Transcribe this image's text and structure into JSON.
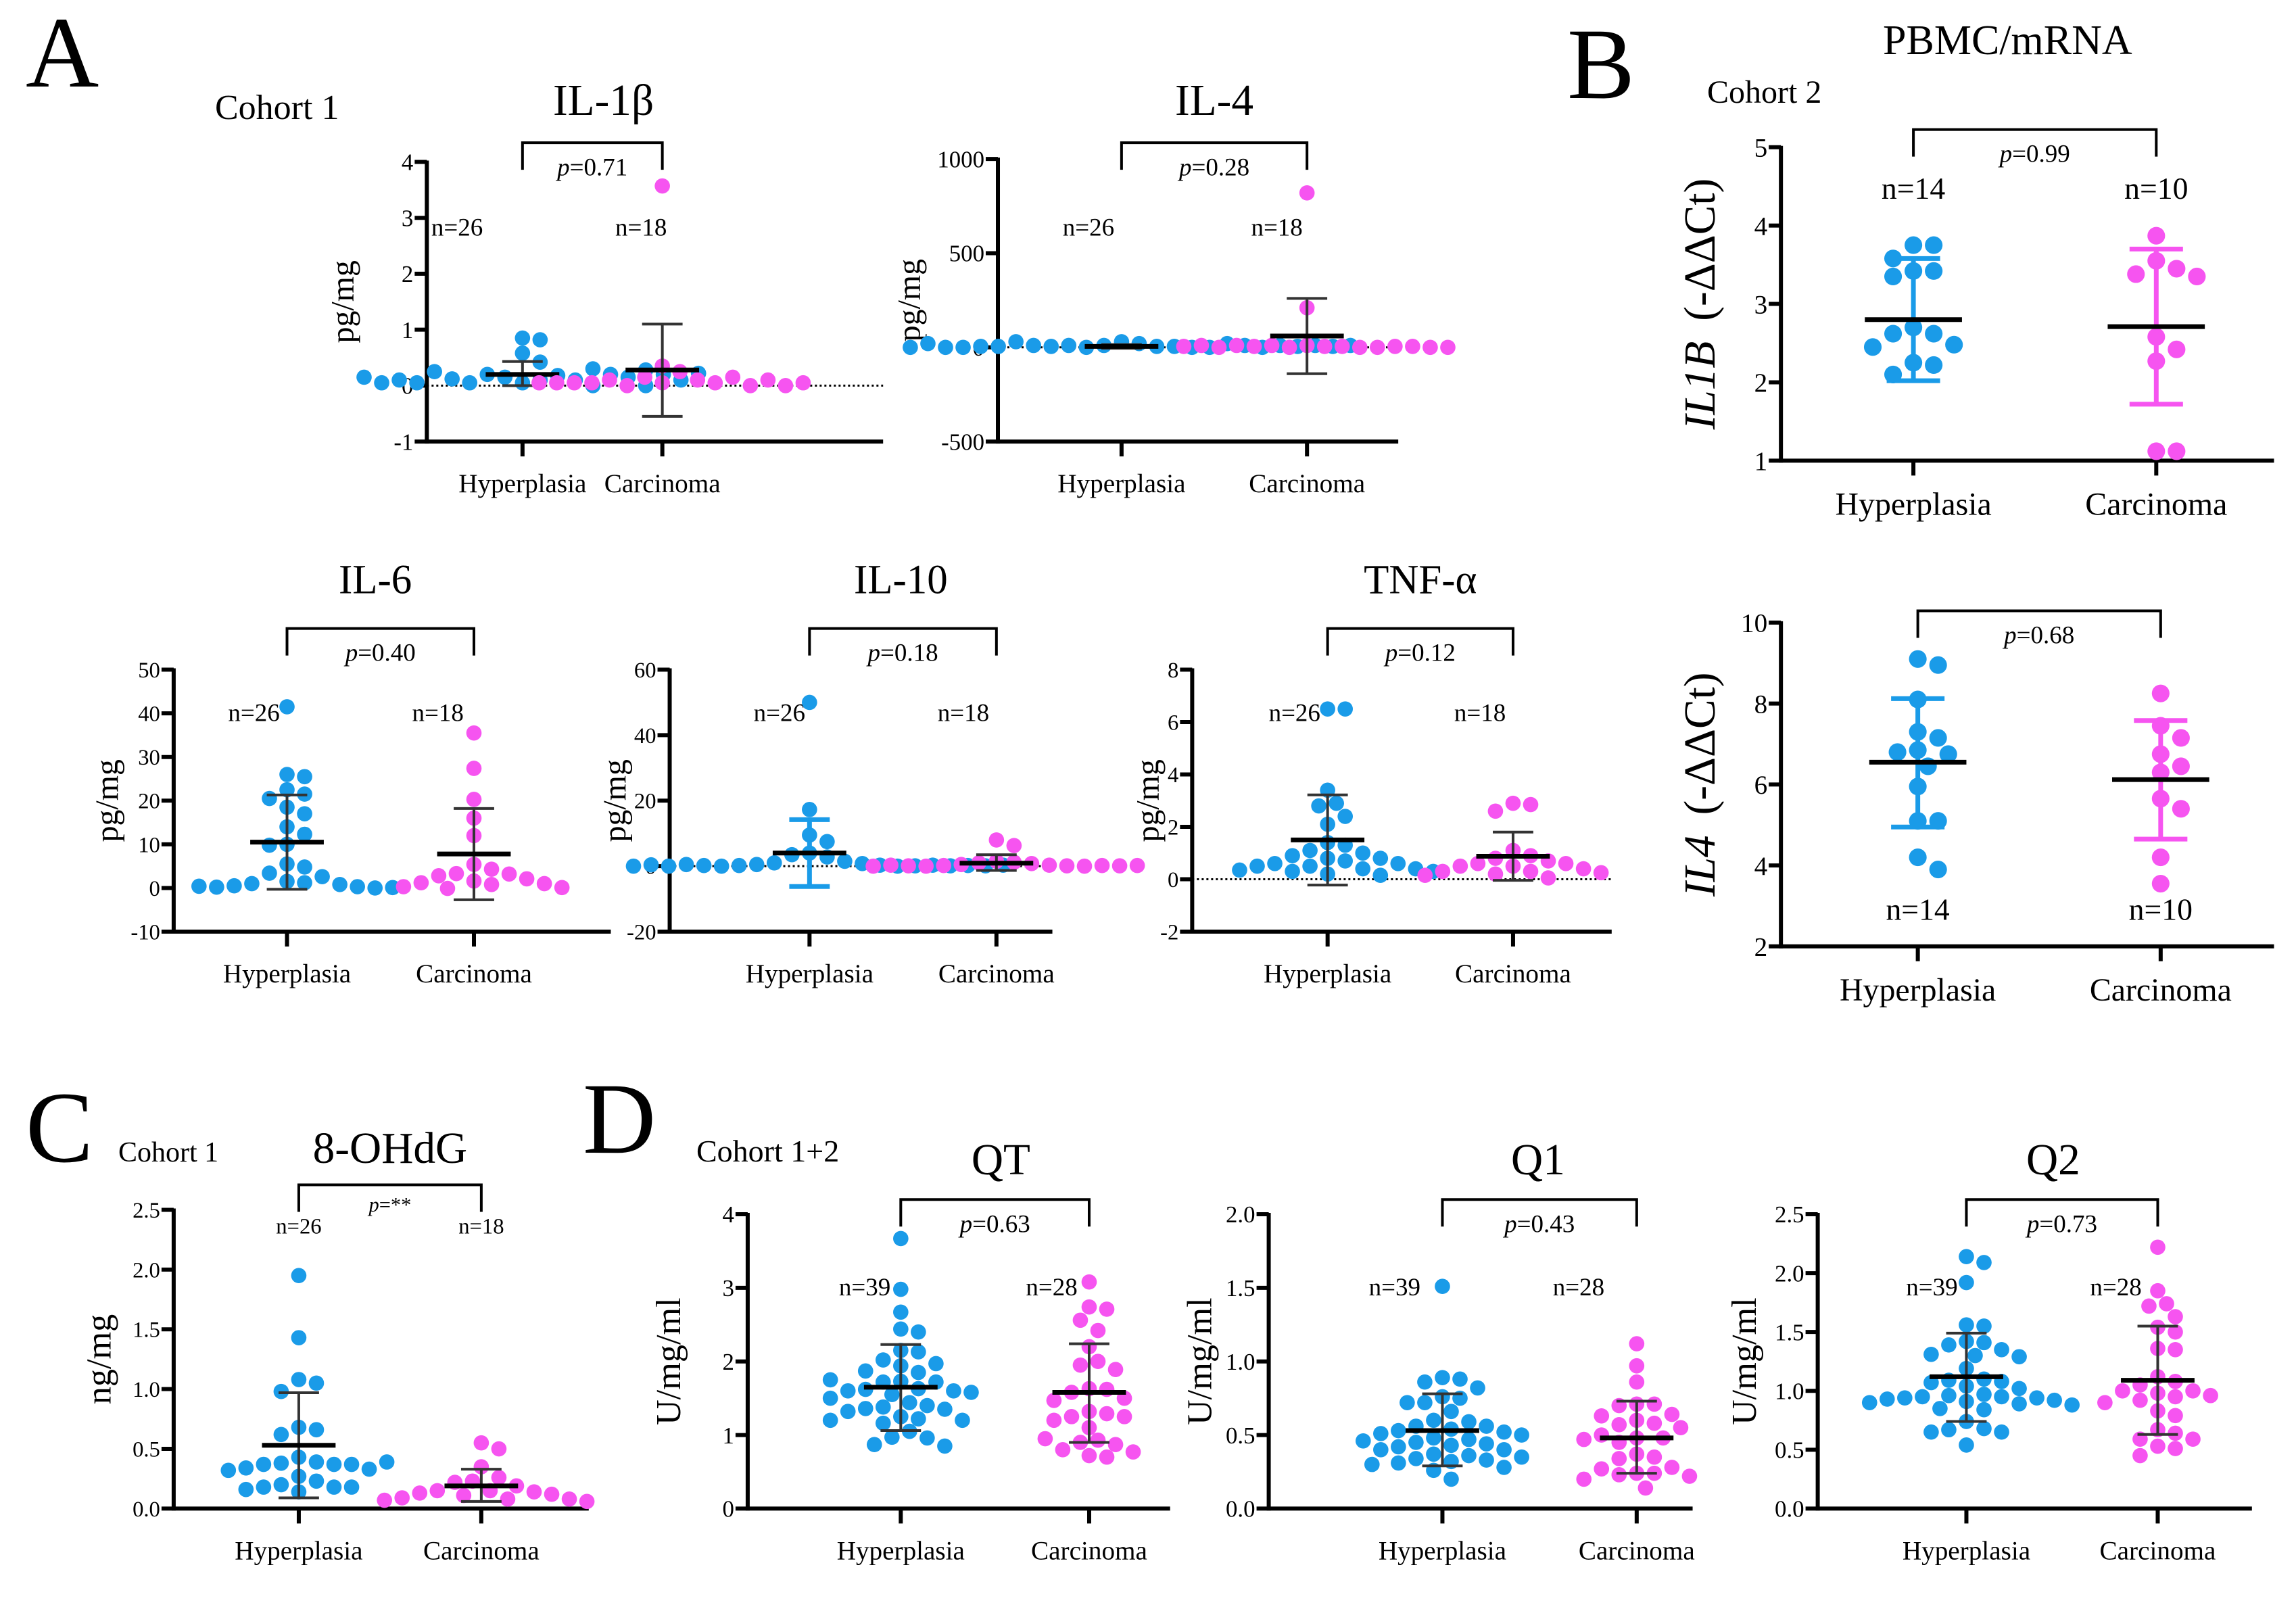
{
  "figure": {
    "panel_labels": [
      "A",
      "B",
      "C",
      "D"
    ],
    "headers": {
      "A_cohort": "Cohort 1",
      "B_title": "PBMC/mRNA",
      "B_cohort": "Cohort 2",
      "C_cohort": "Cohort 1",
      "D_cohort": "Cohort 1+2"
    },
    "colors": {
      "hyperplasia": "#1a9be8",
      "carcinoma": "#f654f0",
      "mean_line": "#000000",
      "axis": "#000000"
    }
  },
  "chart_data": [
    {
      "id": "il1b",
      "type": "scatter",
      "title": "IL-1β",
      "ylabel": "pg/mg",
      "ylim": [
        -1,
        4
      ],
      "yticks": [
        -1,
        0,
        1,
        2,
        3,
        4
      ],
      "tick_labels": [
        "-1",
        "0",
        "1",
        "2",
        "3",
        "4"
      ],
      "zero_line": true,
      "categories": [
        "Hyperplasia",
        "Carcinoma"
      ],
      "p_text": "p=0.71",
      "n_labels": [
        "n=26",
        "n=18"
      ],
      "series": [
        {
          "name": "Hyperplasia",
          "mean": 0.2,
          "sd_upper": 0.43,
          "sd_lower": 0.0,
          "values": [
            0.05,
            0.1,
            0.15,
            0.18,
            0.2,
            0.1,
            0.05,
            0.0,
            0.12,
            0.2,
            0.25,
            0.3,
            0.15,
            0.05,
            0.0,
            0.1,
            0.2,
            0.85,
            0.82,
            0.58,
            0.42,
            0.28,
            0.05,
            0.1,
            0.15,
            0.22
          ]
        },
        {
          "name": "Carcinoma",
          "mean": 0.28,
          "sd_upper": 1.1,
          "sd_lower": -0.55,
          "values": [
            3.57,
            0.35,
            0.25,
            0.15,
            0.1,
            0.05,
            0.0,
            0.05,
            0.1,
            0.15,
            0.05,
            0.0,
            0.05,
            0.1,
            0.05,
            0.0,
            0.05,
            0.05
          ]
        }
      ]
    },
    {
      "id": "il4",
      "type": "scatter",
      "title": "IL-4",
      "ylabel": "pg/mg",
      "ylim": [
        -500,
        1000
      ],
      "yticks": [
        -500,
        0,
        500,
        1000
      ],
      "tick_labels": [
        "-500",
        "0",
        "500",
        "1000"
      ],
      "zero_line": true,
      "categories": [
        "Hyperplasia",
        "Carcinoma"
      ],
      "p_text": "p=0.28",
      "n_labels": [
        "n=26",
        "n=18"
      ],
      "series": [
        {
          "name": "Hyperplasia",
          "mean": 5,
          "sd_upper": 15,
          "sd_lower": -5,
          "values": [
            30,
            20,
            10,
            5,
            0,
            5,
            10,
            0,
            5,
            0,
            10,
            20,
            30,
            10,
            5,
            0,
            5,
            10,
            0,
            5,
            0,
            10,
            20,
            5,
            0,
            10
          ]
        },
        {
          "name": "Carcinoma",
          "mean": 60,
          "sd_upper": 260,
          "sd_lower": -140,
          "values": [
            820,
            210,
            10,
            5,
            0,
            5,
            10,
            0,
            5,
            0,
            10,
            5,
            0,
            5,
            10,
            0,
            5,
            0
          ]
        }
      ]
    },
    {
      "id": "il1b_mrna",
      "type": "scatter",
      "title": "",
      "ylabel_italic": "IL1B",
      "ylabel": "(-ΔΔCt)",
      "ylim": [
        1,
        5
      ],
      "yticks": [
        1,
        2,
        3,
        4,
        5
      ],
      "tick_labels": [
        "1",
        "2",
        "3",
        "4",
        "5"
      ],
      "zero_line": false,
      "colored_errorbars": true,
      "categories": [
        "Hyperplasia",
        "Carcinoma"
      ],
      "p_text": "p=0.99",
      "n_labels": [
        "n=14",
        "n=10"
      ],
      "n_position": "top",
      "series": [
        {
          "name": "Hyperplasia",
          "mean": 2.8,
          "sd_upper": 3.58,
          "sd_lower": 2.02,
          "values": [
            3.75,
            3.75,
            3.58,
            3.42,
            3.42,
            3.35,
            2.7,
            2.62,
            2.62,
            2.48,
            2.25,
            2.22,
            2.1,
            2.45
          ]
        },
        {
          "name": "Carcinoma",
          "mean": 2.71,
          "sd_upper": 3.7,
          "sd_lower": 1.72,
          "values": [
            3.87,
            3.55,
            3.45,
            3.38,
            3.35,
            2.58,
            2.42,
            2.27,
            1.12,
            1.12
          ]
        }
      ]
    },
    {
      "id": "il6",
      "type": "scatter",
      "title": "IL-6",
      "ylabel": "pg/mg",
      "ylim": [
        -10,
        50
      ],
      "yticks": [
        -10,
        0,
        10,
        20,
        30,
        40,
        50
      ],
      "tick_labels": [
        "-10",
        "0",
        "10",
        "20",
        "30",
        "40",
        "50"
      ],
      "zero_line": false,
      "categories": [
        "Hyperplasia",
        "Carcinoma"
      ],
      "p_text": "p=0.40",
      "n_labels": [
        "n=26",
        "n=18"
      ],
      "series": [
        {
          "name": "Hyperplasia",
          "mean": 10.5,
          "sd_upper": 21.3,
          "sd_lower": -0.3,
          "values": [
            41.5,
            26,
            25.5,
            22.5,
            21.5,
            20.5,
            18.5,
            17,
            14,
            12.3,
            10,
            9.8,
            5.5,
            4.8,
            3.4,
            2.6,
            1.5,
            1.2,
            1.0,
            0.8,
            0.5,
            0.3,
            0.2,
            0.0,
            0.4,
            0.1
          ]
        },
        {
          "name": "Carcinoma",
          "mean": 7.8,
          "sd_upper": 18.2,
          "sd_lower": -2.7,
          "values": [
            35.5,
            27.4,
            20.3,
            16,
            12,
            5.4,
            4.3,
            3.3,
            3.2,
            2.8,
            2.1,
            1.6,
            1.2,
            1.0,
            0.8,
            0.3,
            0.1,
            -0.1
          ]
        }
      ]
    },
    {
      "id": "il10",
      "type": "scatter",
      "title": "IL-10",
      "ylabel": "pg/mg",
      "ylim": [
        -20,
        60
      ],
      "yticks": [
        -20,
        0,
        20,
        40,
        60
      ],
      "tick_labels": [
        "-20",
        "0",
        "20",
        "40",
        "60"
      ],
      "zero_line": true,
      "colored_errorbars_hyper": true,
      "categories": [
        "Hyperplasia",
        "Carcinoma"
      ],
      "p_text": "p=0.18",
      "n_labels": [
        "n=26",
        "n=18"
      ],
      "series": [
        {
          "name": "Hyperplasia",
          "mean": 4.0,
          "sd_upper": 14.2,
          "sd_lower": -6.2,
          "values": [
            50,
            17.3,
            9.5,
            7.5,
            4,
            3.5,
            2.8,
            1.5,
            1,
            0.8,
            0.5,
            0.3,
            0.2,
            0,
            0,
            0.1,
            0.2,
            0.3,
            0.5,
            0.1,
            0,
            0.2,
            0.4,
            0.1,
            0,
            0.3
          ]
        },
        {
          "name": "Carcinoma",
          "mean": 0.9,
          "sd_upper": 3.5,
          "sd_lower": -1.3,
          "values": [
            8,
            6.3,
            1.5,
            1.2,
            1,
            0.8,
            0.5,
            0.3,
            0.2,
            0.1,
            0,
            0,
            0.1,
            0.2,
            0.3,
            0.1,
            0,
            0.2
          ]
        }
      ]
    },
    {
      "id": "tnfa",
      "type": "scatter",
      "title": "TNF-α",
      "ylabel": "pg/mg",
      "ylim": [
        -2,
        8
      ],
      "yticks": [
        -2,
        0,
        2,
        4,
        6,
        8
      ],
      "tick_labels": [
        "-2",
        "0",
        "2",
        "4",
        "6",
        "8"
      ],
      "zero_line": true,
      "categories": [
        "Hyperplasia",
        "Carcinoma"
      ],
      "p_text": "p=0.12",
      "n_labels": [
        "n=26",
        "n=18"
      ],
      "series": [
        {
          "name": "Hyperplasia",
          "mean": 1.5,
          "sd_upper": 3.22,
          "sd_lower": -0.22,
          "values": [
            6.5,
            6.5,
            3.4,
            2.9,
            2.8,
            2.4,
            2.1,
            1.4,
            1.3,
            1.1,
            1.0,
            0.9,
            0.8,
            0.8,
            0.7,
            0.6,
            0.6,
            0.5,
            0.5,
            0.4,
            0.4,
            0.35,
            0.3,
            0.3,
            0.2,
            0.15
          ]
        },
        {
          "name": "Carcinoma",
          "mean": 0.88,
          "sd_upper": 1.8,
          "sd_lower": -0.04,
          "values": [
            2.9,
            2.85,
            2.6,
            1.1,
            0.9,
            0.8,
            0.7,
            0.6,
            0.6,
            0.5,
            0.5,
            0.4,
            0.3,
            0.3,
            0.25,
            0.2,
            0.15,
            0.05
          ]
        }
      ]
    },
    {
      "id": "il4_mrna",
      "type": "scatter",
      "title": "",
      "ylabel_italic": "IL4",
      "ylabel": "(-ΔΔCt)",
      "ylim": [
        2,
        10
      ],
      "yticks": [
        2,
        4,
        6,
        8,
        10
      ],
      "tick_labels": [
        "2",
        "4",
        "6",
        "8",
        "10"
      ],
      "zero_line": false,
      "colored_errorbars": true,
      "categories": [
        "Hyperplasia",
        "Carcinoma"
      ],
      "p_text": "p=0.68",
      "n_labels": [
        "n=14",
        "n=10"
      ],
      "n_position": "bottom",
      "series": [
        {
          "name": "Hyperplasia",
          "mean": 6.55,
          "sd_upper": 8.12,
          "sd_lower": 4.95,
          "values": [
            9.1,
            8.95,
            8.1,
            7.3,
            7.15,
            6.85,
            6.8,
            6.75,
            6.45,
            5.95,
            5.1,
            5.1,
            4.2,
            3.9
          ]
        },
        {
          "name": "Carcinoma",
          "mean": 6.12,
          "sd_upper": 7.58,
          "sd_lower": 4.65,
          "values": [
            8.25,
            7.45,
            7.15,
            6.75,
            6.45,
            6.3,
            5.65,
            5.4,
            4.2,
            3.55
          ]
        }
      ]
    },
    {
      "id": "ohdg",
      "type": "scatter",
      "title": "8-OHdG",
      "ylabel": "ng/mg",
      "ylim": [
        0,
        2.5
      ],
      "yticks": [
        0,
        0.5,
        1.0,
        1.5,
        2.0,
        2.5
      ],
      "tick_labels": [
        "0.0",
        "0.5",
        "1.0",
        "1.5",
        "2.0",
        "2.5"
      ],
      "zero_line": false,
      "categories": [
        "Hyperplasia",
        "Carcinoma"
      ],
      "p_text": "p=**",
      "n_labels": [
        "n=26",
        "n=18"
      ],
      "n_position": "top",
      "series": [
        {
          "name": "Hyperplasia",
          "mean": 0.53,
          "sd_upper": 0.97,
          "sd_lower": 0.09,
          "values": [
            1.95,
            1.43,
            1.08,
            1.05,
            0.98,
            0.68,
            0.66,
            0.62,
            0.43,
            0.39,
            0.38,
            0.37,
            0.37,
            0.37,
            0.34,
            0.33,
            0.32,
            0.27,
            0.23,
            0.2,
            0.18,
            0.18,
            0.18,
            0.16,
            0.14,
            0.39
          ]
        },
        {
          "name": "Carcinoma",
          "mean": 0.19,
          "sd_upper": 0.33,
          "sd_lower": 0.06,
          "values": [
            0.55,
            0.5,
            0.35,
            0.26,
            0.23,
            0.22,
            0.19,
            0.15,
            0.15,
            0.14,
            0.13,
            0.12,
            0.11,
            0.09,
            0.08,
            0.08,
            0.07,
            0.06
          ]
        }
      ]
    },
    {
      "id": "qt",
      "type": "scatter",
      "title": "QT",
      "ylabel": "U/mg/ml",
      "ylim": [
        0,
        4
      ],
      "yticks": [
        0,
        1,
        2,
        3,
        4
      ],
      "tick_labels": [
        "0",
        "1",
        "2",
        "3",
        "4"
      ],
      "zero_line": false,
      "categories": [
        "Hyperplasia",
        "Carcinoma"
      ],
      "p_text": "p=0.63",
      "n_labels": [
        "n=39",
        "n=28"
      ],
      "series": [
        {
          "name": "Hyperplasia",
          "mean": 1.65,
          "sd_upper": 2.23,
          "sd_lower": 1.06,
          "values": [
            3.67,
            2.98,
            2.67,
            2.44,
            2.4,
            2.15,
            2.13,
            2.02,
            1.97,
            1.94,
            1.85,
            1.87,
            1.73,
            1.72,
            1.72,
            1.63,
            1.62,
            1.6,
            1.6,
            1.58,
            1.55,
            1.44,
            1.4,
            1.38,
            1.36,
            1.35,
            1.32,
            1.25,
            1.22,
            1.2,
            1.2,
            1.16,
            1.05,
            0.97,
            0.96,
            0.87,
            0.85,
            1.75,
            1.5
          ]
        },
        {
          "name": "Carcinoma",
          "mean": 1.58,
          "sd_upper": 2.24,
          "sd_lower": 0.9,
          "values": [
            3.08,
            2.74,
            2.71,
            2.56,
            2.42,
            2.2,
            2.0,
            1.95,
            1.89,
            1.63,
            1.62,
            1.58,
            1.5,
            1.47,
            1.32,
            1.29,
            1.25,
            1.25,
            1.2,
            1.1,
            0.93,
            0.9,
            0.87,
            0.8,
            0.77,
            0.72,
            0.7,
            0.95
          ]
        }
      ]
    },
    {
      "id": "q1",
      "type": "scatter",
      "title": "Q1",
      "ylabel": "U/mg/ml",
      "ylim": [
        0,
        2.0
      ],
      "yticks": [
        0,
        0.5,
        1.0,
        1.5,
        2.0
      ],
      "tick_labels": [
        "0.0",
        "0.5",
        "1.0",
        "1.5",
        "2.0"
      ],
      "zero_line": false,
      "categories": [
        "Hyperplasia",
        "Carcinoma"
      ],
      "p_text": "p=0.43",
      "n_labels": [
        "n=39",
        "n=28"
      ],
      "series": [
        {
          "name": "Hyperplasia",
          "mean": 0.53,
          "sd_upper": 0.78,
          "sd_lower": 0.29,
          "values": [
            1.51,
            0.89,
            0.88,
            0.86,
            0.82,
            0.76,
            0.75,
            0.72,
            0.72,
            0.66,
            0.6,
            0.59,
            0.56,
            0.56,
            0.54,
            0.53,
            0.52,
            0.51,
            0.5,
            0.48,
            0.47,
            0.46,
            0.45,
            0.44,
            0.43,
            0.42,
            0.4,
            0.4,
            0.37,
            0.36,
            0.35,
            0.34,
            0.33,
            0.32,
            0.31,
            0.3,
            0.28,
            0.26,
            0.2
          ]
        },
        {
          "name": "Carcinoma",
          "mean": 0.48,
          "sd_upper": 0.73,
          "sd_lower": 0.24,
          "values": [
            1.12,
            0.97,
            0.86,
            0.71,
            0.71,
            0.7,
            0.64,
            0.63,
            0.6,
            0.58,
            0.57,
            0.55,
            0.5,
            0.48,
            0.48,
            0.47,
            0.45,
            0.37,
            0.35,
            0.34,
            0.28,
            0.27,
            0.24,
            0.24,
            0.23,
            0.22,
            0.2,
            0.14
          ]
        }
      ]
    },
    {
      "id": "q2",
      "type": "scatter",
      "title": "Q2",
      "ylabel": "U/mg/ml",
      "ylim": [
        0,
        2.5
      ],
      "yticks": [
        0,
        0.5,
        1.0,
        1.5,
        2.0,
        2.5
      ],
      "tick_labels": [
        "0.0",
        "0.5",
        "1.0",
        "1.5",
        "2.0",
        "2.5"
      ],
      "zero_line": false,
      "categories": [
        "Hyperplasia",
        "Carcinoma"
      ],
      "p_text": "p=0.73",
      "n_labels": [
        "n=39",
        "n=28"
      ],
      "series": [
        {
          "name": "Hyperplasia",
          "mean": 1.12,
          "sd_upper": 1.49,
          "sd_lower": 0.74,
          "values": [
            2.14,
            2.09,
            1.92,
            1.56,
            1.55,
            1.42,
            1.41,
            1.39,
            1.35,
            1.31,
            1.3,
            1.29,
            1.19,
            1.1,
            1.09,
            1.08,
            1.07,
            1.04,
            1.02,
            0.97,
            0.96,
            0.95,
            0.95,
            0.94,
            0.94,
            0.93,
            0.92,
            0.91,
            0.9,
            0.89,
            0.88,
            0.85,
            0.84,
            0.74,
            0.68,
            0.67,
            0.65,
            0.65,
            0.54
          ]
        },
        {
          "name": "Carcinoma",
          "mean": 1.09,
          "sd_upper": 1.55,
          "sd_lower": 0.63,
          "values": [
            2.22,
            1.85,
            1.74,
            1.72,
            1.63,
            1.54,
            1.5,
            1.36,
            1.35,
            1.12,
            1.08,
            1.05,
            1.0,
            1.0,
            0.98,
            0.96,
            0.95,
            0.92,
            0.9,
            0.83,
            0.79,
            0.67,
            0.64,
            0.59,
            0.59,
            0.53,
            0.51,
            0.45
          ]
        }
      ]
    }
  ]
}
